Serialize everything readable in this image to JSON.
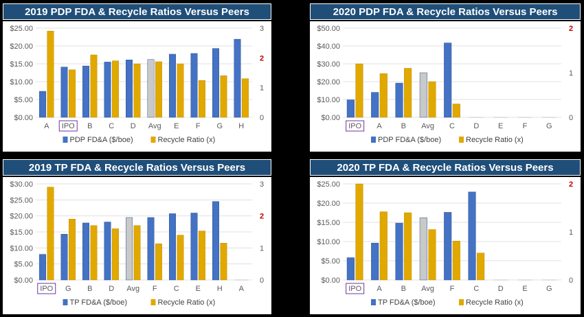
{
  "chart_data": [
    {
      "type": "bar",
      "title": "2019 PDP FDA & Recycle Ratios Versus Peers",
      "categories": [
        "A",
        "IPO",
        "B",
        "C",
        "D",
        "Avg",
        "E",
        "F",
        "G",
        "H"
      ],
      "highlight": "IPO",
      "ytick_labels": [
        "$0.00",
        "$5.00",
        "$10.00",
        "$15.00",
        "$20.00",
        "$25.00"
      ],
      "ylim": [
        0,
        25
      ],
      "y2tick_labels": [
        "0",
        "1",
        "2",
        "3"
      ],
      "y2lim": [
        0,
        3
      ],
      "y2_red_tick": "2",
      "series": [
        {
          "name": "PDP FD&A ($/boe)",
          "axis": "left",
          "values": [
            7.3,
            14.1,
            14.4,
            15.5,
            16.1,
            16.2,
            17.7,
            17.9,
            19.3,
            21.9
          ]
        },
        {
          "name": "Recycle Ratio (x)",
          "axis": "right",
          "values": [
            2.9,
            1.6,
            2.1,
            1.9,
            1.8,
            1.87,
            1.8,
            1.24,
            1.4,
            1.3
          ]
        }
      ],
      "avg_category": "Avg"
    },
    {
      "type": "bar",
      "title": "2020 PDP FDA & Recycle Ratios Versus Peers",
      "categories": [
        "IPO",
        "A",
        "B",
        "Avg",
        "C",
        "D",
        "E",
        "F",
        "G"
      ],
      "highlight": "IPO",
      "ytick_labels": [
        "$0.00",
        "$10.00",
        "$20.00",
        "$30.00",
        "$40.00",
        "$50.00"
      ],
      "ylim": [
        0,
        50
      ],
      "y2tick_labels": [
        "0",
        "1",
        "2"
      ],
      "y2lim": [
        0,
        2
      ],
      "y2_red_tick": "2",
      "series": [
        {
          "name": "PDP FD&A ($/boe)",
          "axis": "left",
          "values": [
            9.8,
            14.0,
            19.2,
            25.0,
            41.7,
            0,
            0,
            0,
            0
          ]
        },
        {
          "name": "Recycle Ratio (x)",
          "axis": "right",
          "values": [
            1.2,
            0.98,
            1.1,
            0.8,
            0.3,
            0,
            0,
            0,
            0
          ]
        }
      ],
      "avg_category": "Avg"
    },
    {
      "type": "bar",
      "title": "2019 TP FDA & Recycle Ratios Versus Peers",
      "categories": [
        "IPO",
        "G",
        "B",
        "D",
        "Avg",
        "F",
        "C",
        "E",
        "H",
        "A"
      ],
      "highlight": "IPO",
      "ytick_labels": [
        "$0.00",
        "$5.00",
        "$10.00",
        "$15.00",
        "$20.00",
        "$25.00",
        "$30.00"
      ],
      "ylim": [
        0,
        30
      ],
      "y2tick_labels": [
        "0",
        "1",
        "2",
        "3"
      ],
      "y2lim": [
        0,
        3
      ],
      "y2_red_tick": "2",
      "series": [
        {
          "name": "TP FD&A ($/boe)",
          "axis": "left",
          "values": [
            8.0,
            14.3,
            17.8,
            18.1,
            19.5,
            19.5,
            20.7,
            20.9,
            24.5,
            0
          ]
        },
        {
          "name": "Recycle Ratio (x)",
          "axis": "right",
          "values": [
            2.9,
            1.9,
            1.7,
            1.6,
            1.7,
            1.13,
            1.4,
            1.53,
            1.15,
            0
          ]
        }
      ],
      "avg_category": "Avg"
    },
    {
      "type": "bar",
      "title": "2020 TP FDA & Recycle Ratios Versus Peers",
      "categories": [
        "IPO",
        "A",
        "B",
        "Avg",
        "F",
        "C",
        "D",
        "E",
        "G"
      ],
      "highlight": "IPO",
      "ytick_labels": [
        "$0.00",
        "$5.00",
        "$10.00",
        "$15.00",
        "$20.00",
        "$25.00"
      ],
      "ylim": [
        0,
        25
      ],
      "y2tick_labels": [
        "0",
        "1",
        "2"
      ],
      "y2lim": [
        0,
        2
      ],
      "y2_red_tick": "2",
      "series": [
        {
          "name": "TP FD&A ($/boe)",
          "axis": "left",
          "values": [
            5.8,
            9.6,
            14.8,
            16.2,
            17.6,
            22.9,
            0,
            0,
            0
          ]
        },
        {
          "name": "Recycle Ratio (x)",
          "axis": "right",
          "values": [
            2.0,
            1.42,
            1.4,
            1.05,
            0.81,
            0.56,
            0,
            0,
            0
          ]
        }
      ],
      "avg_category": "Avg"
    }
  ],
  "colors": {
    "bar_primary": "#4472c4",
    "bar_secondary": "#e1a800",
    "bar_avg": "#c9c9c9",
    "title_bg": "#1f4e79",
    "highlight_box": "#7030a0",
    "red_tick": "#c00000"
  }
}
